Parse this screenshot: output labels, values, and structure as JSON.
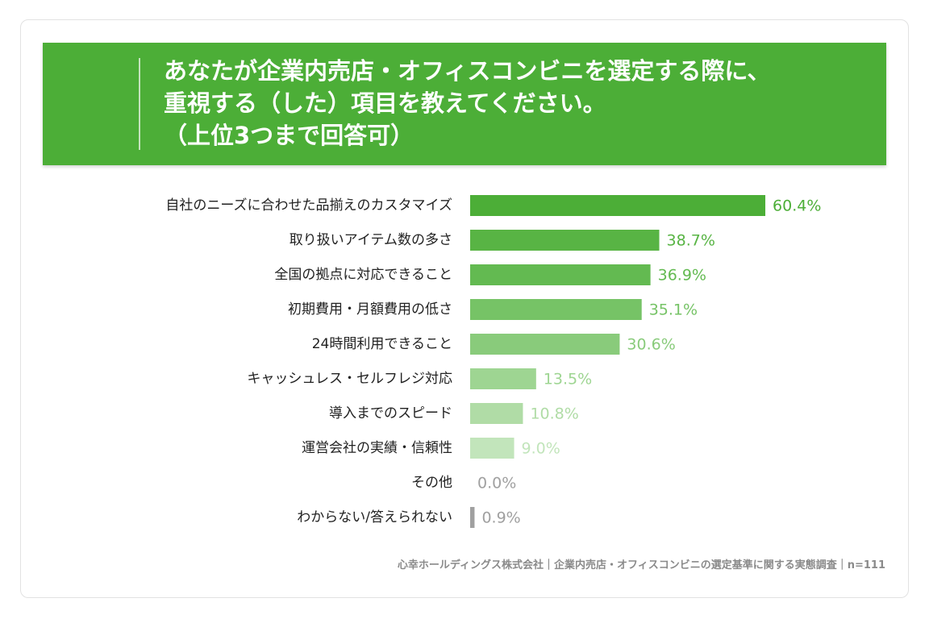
{
  "title_lines": [
    "あなたが企業内売店・オフィスコンビニを選定する際に、",
    "重視する（した）項目を教えてください。",
    "（上位3つまで回答可）"
  ],
  "footer": "心幸ホールディングス株式会社｜企業内売店・オフィスコンビニの選定基準に関する実態調査｜n=111",
  "chart_data": {
    "type": "bar",
    "orientation": "horizontal",
    "categories": [
      "自社のニーズに合わせた品揃えのカスタマイズ",
      "取り扱いアイテム数の多さ",
      "全国の拠点に対応できること",
      "初期費用・月額費用の低さ",
      "24時間利用できること",
      "キャッシュレス・セルフレジ対応",
      "導入までのスピード",
      "運営会社の実績・信頼性",
      "その他",
      "わからない/答えられない"
    ],
    "values": [
      60.4,
      38.7,
      36.9,
      35.1,
      30.6,
      13.5,
      10.8,
      9.0,
      0.0,
      0.9
    ],
    "value_labels": [
      "60.4%",
      "38.7%",
      "36.9%",
      "35.1%",
      "30.6%",
      "13.5%",
      "10.8%",
      "9.0%",
      "0.0%",
      "0.9%"
    ],
    "colors": [
      "#4cae37",
      "#58b444",
      "#63ba51",
      "#76c366",
      "#89cb7b",
      "#9ed592",
      "#b0dca6",
      "#c2e5bb",
      "#a0a0a0",
      "#a0a0a0"
    ],
    "label_colors": [
      "#4cae37",
      "#58b444",
      "#63ba51",
      "#76c366",
      "#89cb7b",
      "#9ed592",
      "#b0dca6",
      "#c2e5bb",
      "#a0a0a0",
      "#a0a0a0"
    ],
    "xlim": [
      0,
      100
    ]
  }
}
